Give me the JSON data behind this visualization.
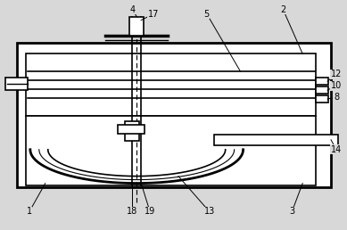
{
  "bg_color": "#d8d8d8",
  "line_color": "#000000",
  "fig_width": 3.89,
  "fig_height": 2.58,
  "dpi": 100
}
